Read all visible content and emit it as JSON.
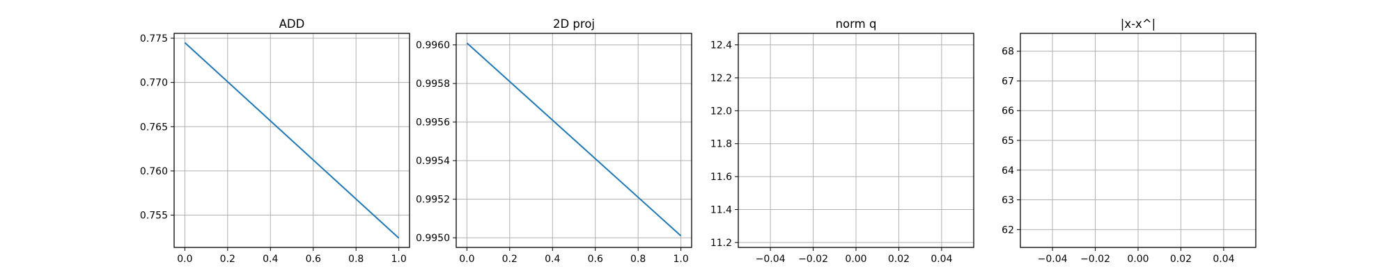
{
  "chart_data": [
    {
      "type": "line",
      "title": "ADD",
      "xlabel": "",
      "ylabel": "",
      "xlim": [
        -0.05,
        1.05
      ],
      "ylim": [
        0.75135,
        0.77555
      ],
      "grid": true,
      "x_ticks": [
        "0.0",
        "0.2",
        "0.4",
        "0.6",
        "0.8",
        "1.0"
      ],
      "x_tick_values": [
        0.0,
        0.2,
        0.4,
        0.6,
        0.8,
        1.0
      ],
      "y_ticks": [
        "0.755",
        "0.760",
        "0.765",
        "0.770",
        "0.775"
      ],
      "y_tick_values": [
        0.755,
        0.76,
        0.765,
        0.77,
        0.775
      ],
      "series": [
        {
          "color": "#1f77b4",
          "x": [
            0.0,
            1.0
          ],
          "y": [
            0.7745,
            0.7524
          ]
        }
      ]
    },
    {
      "type": "line",
      "title": "2D proj",
      "xlabel": "",
      "ylabel": "",
      "xlim": [
        -0.05,
        1.05
      ],
      "ylim": [
        0.99495,
        0.99606
      ],
      "grid": true,
      "x_ticks": [
        "0.0",
        "0.2",
        "0.4",
        "0.6",
        "0.8",
        "1.0"
      ],
      "x_tick_values": [
        0.0,
        0.2,
        0.4,
        0.6,
        0.8,
        1.0
      ],
      "y_ticks": [
        "0.9950",
        "0.9952",
        "0.9954",
        "0.9956",
        "0.9958",
        "0.9960"
      ],
      "y_tick_values": [
        0.995,
        0.9952,
        0.9954,
        0.9956,
        0.9958,
        0.996
      ],
      "series": [
        {
          "color": "#1f77b4",
          "x": [
            0.0,
            1.0
          ],
          "y": [
            0.99601,
            0.99501
          ]
        }
      ]
    },
    {
      "type": "line",
      "title": "norm q",
      "xlabel": "",
      "ylabel": "",
      "xlim": [
        -0.055,
        0.055
      ],
      "ylim": [
        11.17,
        12.47
      ],
      "grid": true,
      "x_ticks": [
        "−0.04",
        "−0.02",
        "0.00",
        "0.02",
        "0.04"
      ],
      "x_tick_values": [
        -0.04,
        -0.02,
        0.0,
        0.02,
        0.04
      ],
      "y_ticks": [
        "11.2",
        "11.4",
        "11.6",
        "11.8",
        "12.0",
        "12.2",
        "12.4"
      ],
      "y_tick_values": [
        11.2,
        11.4,
        11.6,
        11.8,
        12.0,
        12.2,
        12.4
      ],
      "series": []
    },
    {
      "type": "line",
      "title": "|x-x^|",
      "xlabel": "",
      "ylabel": "",
      "xlim": [
        -0.055,
        0.055
      ],
      "ylim": [
        61.4,
        68.6
      ],
      "grid": true,
      "x_ticks": [
        "−0.04",
        "−0.02",
        "0.00",
        "0.02",
        "0.04"
      ],
      "x_tick_values": [
        -0.04,
        -0.02,
        0.0,
        0.02,
        0.04
      ],
      "y_ticks": [
        "62",
        "63",
        "64",
        "65",
        "66",
        "67",
        "68"
      ],
      "y_tick_values": [
        62,
        63,
        64,
        65,
        66,
        67,
        68
      ],
      "series": []
    }
  ]
}
